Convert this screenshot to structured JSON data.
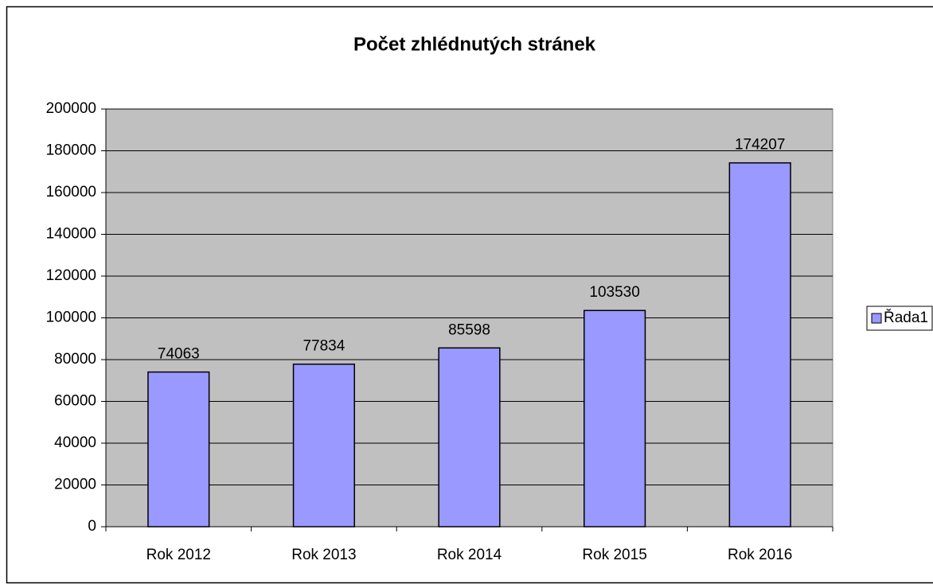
{
  "chart_data": {
    "type": "bar",
    "title": "Počet zhlédnutých stránek",
    "categories": [
      "Rok 2012",
      "Rok 2013",
      "Rok 2014",
      "Rok 2015",
      "Rok 2016"
    ],
    "series": [
      {
        "name": "Řada1",
        "color": "#9999ff",
        "values": [
          74063,
          77834,
          85598,
          103530,
          174207
        ]
      }
    ],
    "ylim": [
      0,
      200000
    ],
    "yticks": [
      0,
      20000,
      40000,
      60000,
      80000,
      100000,
      120000,
      140000,
      160000,
      180000,
      200000
    ],
    "grid": true,
    "legend": "right"
  }
}
